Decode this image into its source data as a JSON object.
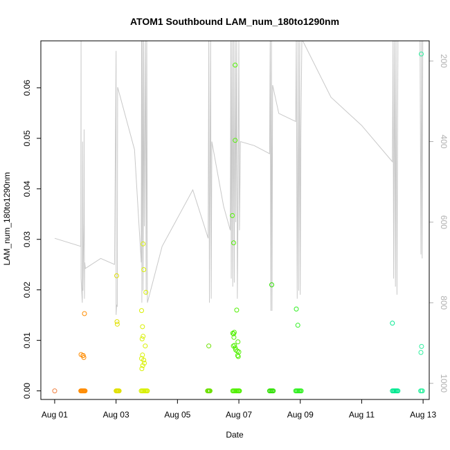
{
  "chart_data": {
    "type": "scatter",
    "title": "ATOM1 Southbound LAM_num_180to1290nm",
    "xlabel": "Date",
    "ylabel": "LAM_num_180to1290nm",
    "x_ticks": [
      {
        "value": 1,
        "label": "Aug 01"
      },
      {
        "value": 3,
        "label": "Aug 03"
      },
      {
        "value": 5,
        "label": "Aug 05"
      },
      {
        "value": 7,
        "label": "Aug 07"
      },
      {
        "value": 9,
        "label": "Aug 09"
      },
      {
        "value": 11,
        "label": "Aug 11"
      },
      {
        "value": 13,
        "label": "Aug 13"
      }
    ],
    "xlim": [
      0.55,
      13.2
    ],
    "ylim": [
      -0.0017,
      0.0693
    ],
    "y_ticks": [
      {
        "value": 0.0,
        "label": "0.00"
      },
      {
        "value": 0.01,
        "label": "0.01"
      },
      {
        "value": 0.02,
        "label": "0.02"
      },
      {
        "value": 0.03,
        "label": "0.03"
      },
      {
        "value": 0.04,
        "label": "0.04"
      },
      {
        "value": 0.05,
        "label": "0.05"
      },
      {
        "value": 0.06,
        "label": "0.06"
      }
    ],
    "y2lim": [
      1040,
      150
    ],
    "y2_ticks": [
      {
        "value": 200,
        "label": "200"
      },
      {
        "value": 400,
        "label": "400"
      },
      {
        "value": 600,
        "label": "600"
      },
      {
        "value": 800,
        "label": "800"
      },
      {
        "value": 1000,
        "label": "1000"
      }
    ],
    "series_points": [
      {
        "color": "#f08040",
        "points": [
          [
            1.0,
            0.0
          ]
        ]
      },
      {
        "color": "#ff8c00",
        "points": [
          [
            1.85,
            0.0
          ],
          [
            1.87,
            0.0
          ],
          [
            1.89,
            0.0
          ],
          [
            1.91,
            0.0
          ],
          [
            1.93,
            0.0
          ],
          [
            1.95,
            0.0
          ],
          [
            1.97,
            0.0
          ],
          [
            1.99,
            0.0
          ],
          [
            1.86,
            0.0072
          ],
          [
            1.92,
            0.007
          ],
          [
            1.95,
            0.0066
          ],
          [
            1.93,
            0.007
          ],
          [
            1.97,
            0.0153
          ]
        ]
      },
      {
        "color": "#e0e000",
        "points": [
          [
            3.0,
            0.0
          ],
          [
            3.02,
            0.0
          ],
          [
            3.04,
            0.0
          ],
          [
            3.06,
            0.0
          ],
          [
            3.08,
            0.0
          ],
          [
            3.1,
            0.0
          ],
          [
            3.02,
            0.0228
          ],
          [
            3.03,
            0.0137
          ],
          [
            3.04,
            0.0132
          ]
        ]
      },
      {
        "color": "#d8f000",
        "points": [
          [
            3.82,
            0.0
          ],
          [
            3.85,
            0.0
          ],
          [
            3.88,
            0.0
          ],
          [
            3.91,
            0.0
          ],
          [
            3.94,
            0.0
          ],
          [
            3.97,
            0.0
          ],
          [
            4.0,
            0.0
          ],
          [
            4.02,
            0.0
          ],
          [
            3.88,
            0.0291
          ],
          [
            3.9,
            0.024
          ],
          [
            3.97,
            0.0195
          ],
          [
            3.83,
            0.0159
          ],
          [
            3.86,
            0.0127
          ],
          [
            3.88,
            0.0108
          ],
          [
            3.85,
            0.0103
          ],
          [
            3.95,
            0.0089
          ],
          [
            3.86,
            0.0071
          ],
          [
            3.83,
            0.0064
          ],
          [
            3.9,
            0.0061
          ],
          [
            3.92,
            0.0055
          ],
          [
            3.87,
            0.005
          ],
          [
            3.84,
            0.0044
          ]
        ]
      },
      {
        "color": "#6ce000",
        "points": [
          [
            5.98,
            0.0
          ],
          [
            6.0,
            0.0
          ],
          [
            6.02,
            0.0
          ],
          [
            6.04,
            0.0
          ],
          [
            6.06,
            0.0
          ],
          [
            6.02,
            0.0089
          ]
        ]
      },
      {
        "color": "#50f000",
        "points": [
          [
            6.8,
            0.0
          ],
          [
            6.83,
            0.0
          ],
          [
            6.86,
            0.0
          ],
          [
            6.89,
            0.0
          ],
          [
            6.92,
            0.0
          ],
          [
            6.95,
            0.0
          ],
          [
            6.98,
            0.0
          ],
          [
            7.0,
            0.0
          ],
          [
            7.02,
            0.0
          ],
          [
            6.88,
            0.0645
          ],
          [
            6.88,
            0.0496
          ],
          [
            6.79,
            0.0347
          ],
          [
            6.83,
            0.0293
          ],
          [
            6.93,
            0.016
          ],
          [
            6.8,
            0.0114
          ],
          [
            6.85,
            0.0116
          ],
          [
            6.83,
            0.0113
          ],
          [
            6.84,
            0.0106
          ],
          [
            6.97,
            0.0097
          ],
          [
            6.86,
            0.009
          ],
          [
            6.82,
            0.0089
          ],
          [
            6.88,
            0.0085
          ],
          [
            6.9,
            0.0081
          ],
          [
            6.95,
            0.0079
          ],
          [
            7.0,
            0.0077
          ],
          [
            6.96,
            0.007
          ],
          [
            6.98,
            0.0068
          ]
        ]
      },
      {
        "color": "#2ee000",
        "points": [
          [
            8.0,
            0.0
          ],
          [
            8.03,
            0.0
          ],
          [
            8.06,
            0.0
          ],
          [
            8.09,
            0.0
          ],
          [
            8.12,
            0.0
          ],
          [
            8.07,
            0.021
          ]
        ]
      },
      {
        "color": "#30f020",
        "points": [
          [
            8.85,
            0.0
          ],
          [
            8.88,
            0.0
          ],
          [
            8.91,
            0.0
          ],
          [
            8.94,
            0.0
          ],
          [
            8.97,
            0.0
          ],
          [
            9.0,
            0.0
          ],
          [
            9.03,
            0.0
          ],
          [
            8.87,
            0.0162
          ],
          [
            8.92,
            0.013
          ]
        ]
      },
      {
        "color": "#00e890",
        "points": [
          [
            12.0,
            0.0
          ],
          [
            12.03,
            0.0
          ],
          [
            12.06,
            0.0
          ],
          [
            12.09,
            0.0
          ],
          [
            12.12,
            0.0
          ],
          [
            12.15,
            0.0
          ],
          [
            12.18,
            0.0
          ],
          [
            12.0,
            0.0134
          ]
        ]
      },
      {
        "color": "#30f0a0",
        "points": [
          [
            12.92,
            0.0
          ],
          [
            12.95,
            0.0
          ],
          [
            12.98,
            0.0
          ],
          [
            12.94,
            0.0667
          ],
          [
            12.95,
            0.0088
          ],
          [
            12.93,
            0.0076
          ]
        ]
      }
    ],
    "gray_line": {
      "color": "#c8c8c8",
      "comment": "secondary-axis trace (values on right axis)",
      "points": [
        [
          1.0,
          640
        ],
        [
          1.85,
          660
        ],
        [
          1.86,
          150
        ],
        [
          1.86,
          740
        ],
        [
          1.9,
          800
        ],
        [
          1.91,
          400
        ],
        [
          1.92,
          770
        ],
        [
          1.95,
          600
        ],
        [
          1.96,
          370
        ],
        [
          1.97,
          790
        ],
        [
          1.98,
          700
        ],
        [
          2.0,
          715
        ],
        [
          2.5,
          690
        ],
        [
          2.95,
          705
        ],
        [
          3.0,
          175
        ],
        [
          3.0,
          830
        ],
        [
          3.02,
          805
        ],
        [
          3.04,
          810
        ],
        [
          3.05,
          265
        ],
        [
          3.6,
          420
        ],
        [
          3.82,
          700
        ],
        [
          3.83,
          150
        ],
        [
          3.84,
          800
        ],
        [
          3.86,
          150
        ],
        [
          3.88,
          770
        ],
        [
          3.9,
          150
        ],
        [
          3.92,
          610
        ],
        [
          3.94,
          380
        ],
        [
          3.96,
          150
        ],
        [
          3.98,
          780
        ],
        [
          4.0,
          150
        ],
        [
          4.02,
          800
        ],
        [
          4.5,
          660
        ],
        [
          5.5,
          520
        ],
        [
          6.0,
          640
        ],
        [
          6.02,
          150
        ],
        [
          6.04,
          800
        ],
        [
          6.06,
          470
        ],
        [
          6.08,
          150
        ],
        [
          6.1,
          790
        ],
        [
          6.12,
          400
        ],
        [
          6.5,
          560
        ],
        [
          6.72,
          620
        ],
        [
          6.74,
          150
        ],
        [
          6.75,
          740
        ],
        [
          6.78,
          150
        ],
        [
          6.8,
          760
        ],
        [
          6.83,
          150
        ],
        [
          6.85,
          750
        ],
        [
          6.88,
          150
        ],
        [
          6.9,
          600
        ],
        [
          6.93,
          150
        ],
        [
          6.95,
          790
        ],
        [
          6.97,
          600
        ],
        [
          7.0,
          150
        ],
        [
          7.02,
          620
        ],
        [
          7.05,
          400
        ],
        [
          7.5,
          410
        ],
        [
          8.0,
          430
        ],
        [
          8.02,
          150
        ],
        [
          8.04,
          820
        ],
        [
          8.06,
          150
        ],
        [
          8.08,
          820
        ],
        [
          8.1,
          260
        ],
        [
          8.3,
          330
        ],
        [
          8.85,
          350
        ],
        [
          8.87,
          150
        ],
        [
          8.9,
          790
        ],
        [
          8.93,
          150
        ],
        [
          8.95,
          770
        ],
        [
          8.98,
          150
        ],
        [
          9.0,
          780
        ],
        [
          9.02,
          380
        ],
        [
          9.05,
          150
        ],
        [
          9.08,
          150
        ],
        [
          10.0,
          290
        ],
        [
          11.0,
          360
        ],
        [
          12.0,
          450
        ],
        [
          12.02,
          150
        ],
        [
          12.04,
          740
        ],
        [
          12.07,
          150
        ],
        [
          12.1,
          760
        ],
        [
          12.12,
          150
        ],
        [
          12.15,
          780
        ],
        [
          12.18,
          150
        ],
        [
          12.9,
          150
        ],
        [
          12.93,
          680
        ],
        [
          12.95,
          150
        ],
        [
          12.97,
          690
        ],
        [
          12.99,
          150
        ]
      ]
    },
    "grid": false,
    "legend": "none"
  }
}
